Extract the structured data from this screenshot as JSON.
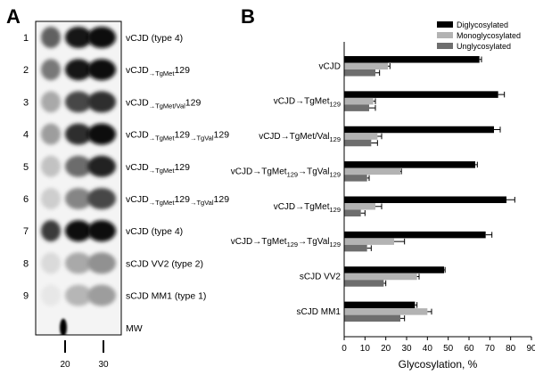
{
  "panel_a": {
    "letter": "A",
    "lanes": [
      {
        "num": "1",
        "label": [
          "vCJD (type 4)"
        ]
      },
      {
        "num": "2",
        "label": [
          "vCJD",
          "→TgMet",
          "129",
          ""
        ]
      },
      {
        "num": "3",
        "label": [
          "vCJD",
          "→TgMet/Val",
          "129",
          ""
        ]
      },
      {
        "num": "4",
        "label": [
          "vCJD",
          "→TgMet",
          "129",
          "→TgVal",
          "129"
        ]
      },
      {
        "num": "5",
        "label": [
          "vCJD",
          "→TgMet",
          "129",
          ""
        ]
      },
      {
        "num": "6",
        "label": [
          "vCJD",
          "→TgMet",
          "129",
          "→TgVal",
          "129"
        ]
      },
      {
        "num": "7",
        "label": [
          "vCJD (type 4)"
        ]
      },
      {
        "num": "8",
        "label": [
          "sCJD VV2 (type 2)"
        ]
      },
      {
        "num": "9",
        "label": [
          "sCJD MM1 (type 1)"
        ]
      },
      {
        "num": "",
        "label": [
          "MW"
        ]
      }
    ],
    "mw_markers": [
      "20",
      "30"
    ]
  },
  "chart_data": {
    "letter": "B",
    "type": "bar",
    "orientation": "horizontal",
    "categories": [
      [
        "vCJD"
      ],
      [
        "vCJD→TgMet",
        "129"
      ],
      [
        "vCJD→TgMet/Val",
        "129"
      ],
      [
        "vCJD→TgMet",
        "129",
        "→TgVal",
        "129"
      ],
      [
        "vCJD→TgMet",
        "129"
      ],
      [
        "vCJD→TgMet",
        "129",
        "→TgVal",
        "129"
      ],
      [
        "sCJD VV2"
      ],
      [
        "sCJD MM1"
      ]
    ],
    "series": [
      {
        "name": "Diglycosylated",
        "color": "#000000",
        "values": [
          65,
          74,
          72,
          63,
          78,
          68,
          48,
          34
        ],
        "errors": [
          1,
          3,
          3,
          1,
          4,
          3,
          0.5,
          1
        ]
      },
      {
        "name": "Monoglycosylated",
        "color": "#b3b3b3",
        "values": [
          21,
          14,
          16,
          27,
          15,
          24,
          35,
          40
        ],
        "errors": [
          1,
          1,
          2,
          0.5,
          3,
          5,
          1,
          2
        ]
      },
      {
        "name": "Unglycosylated",
        "color": "#6e6e6e",
        "values": [
          15,
          12,
          13,
          11,
          8,
          11,
          19,
          27
        ],
        "errors": [
          2,
          3,
          3,
          1,
          2,
          2,
          1,
          2
        ]
      }
    ],
    "xlabel": "Glycosylation, %",
    "xlim": [
      0,
      90
    ],
    "xticks": [
      0,
      10,
      20,
      30,
      40,
      50,
      60,
      70,
      80,
      90
    ],
    "legend": "top-right",
    "grid": false
  }
}
